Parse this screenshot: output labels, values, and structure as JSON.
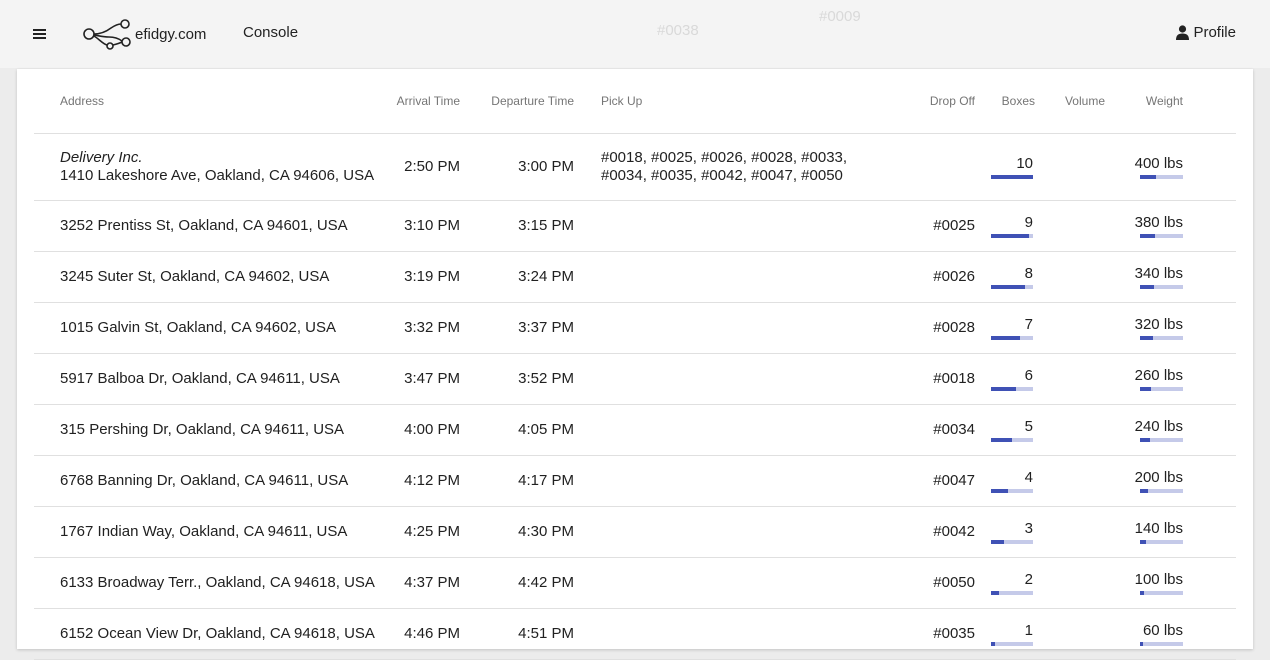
{
  "app": {
    "logo_text": "efidgy.com",
    "nav_console": "Console",
    "profile_label": "Profile",
    "background_ghost_labels": [
      "#0038",
      "#0009"
    ]
  },
  "colors": {
    "bar_fill": "#3f51b5",
    "bar_track": "#c5cae9",
    "header_bg": "#f4f4f4"
  },
  "icons": {
    "menu": "hamburger-menu-icon",
    "logo": "efidgy-route-logo-icon",
    "profile": "person-icon"
  },
  "table": {
    "headers": {
      "address": "Address",
      "arrival": "Arrival Time",
      "departure": "Departure Time",
      "pickup": "Pick Up",
      "dropoff": "Drop Off",
      "boxes": "Boxes",
      "volume": "Volume",
      "weight": "Weight"
    },
    "rows": [
      {
        "company": "Delivery Inc.",
        "address": "1410 Lakeshore Ave, Oakland, CA 94606, USA",
        "arrival": "2:50 PM",
        "departure": "3:00 PM",
        "pickup": "#0018, #0025, #0026, #0028, #0033, #0034, #0035, #0042, #0047, #0050",
        "dropoff": "",
        "boxes": "10",
        "boxes_fraction": 1.0,
        "weight": "400 lbs",
        "weight_fraction": 0.38
      },
      {
        "company": "",
        "address": "3252 Prentiss St, Oakland, CA 94601, USA",
        "arrival": "3:10 PM",
        "departure": "3:15 PM",
        "pickup": "",
        "dropoff": "#0025",
        "boxes": "9",
        "boxes_fraction": 0.9,
        "weight": "380 lbs",
        "weight_fraction": 0.36
      },
      {
        "company": "",
        "address": "3245 Suter St, Oakland, CA 94602, USA",
        "arrival": "3:19 PM",
        "departure": "3:24 PM",
        "pickup": "",
        "dropoff": "#0026",
        "boxes": "8",
        "boxes_fraction": 0.8,
        "weight": "340 lbs",
        "weight_fraction": 0.33
      },
      {
        "company": "",
        "address": "1015 Galvin St, Oakland, CA 94602, USA",
        "arrival": "3:32 PM",
        "departure": "3:37 PM",
        "pickup": "",
        "dropoff": "#0028",
        "boxes": "7",
        "boxes_fraction": 0.7,
        "weight": "320 lbs",
        "weight_fraction": 0.31
      },
      {
        "company": "",
        "address": "5917 Balboa Dr, Oakland, CA 94611, USA",
        "arrival": "3:47 PM",
        "departure": "3:52 PM",
        "pickup": "",
        "dropoff": "#0018",
        "boxes": "6",
        "boxes_fraction": 0.6,
        "weight": "260 lbs",
        "weight_fraction": 0.25
      },
      {
        "company": "",
        "address": "315 Pershing Dr, Oakland, CA 94611, USA",
        "arrival": "4:00 PM",
        "departure": "4:05 PM",
        "pickup": "",
        "dropoff": "#0034",
        "boxes": "5",
        "boxes_fraction": 0.5,
        "weight": "240 lbs",
        "weight_fraction": 0.23
      },
      {
        "company": "",
        "address": "6768 Banning Dr, Oakland, CA 94611, USA",
        "arrival": "4:12 PM",
        "departure": "4:17 PM",
        "pickup": "",
        "dropoff": "#0047",
        "boxes": "4",
        "boxes_fraction": 0.4,
        "weight": "200 lbs",
        "weight_fraction": 0.19
      },
      {
        "company": "",
        "address": "1767 Indian Way, Oakland, CA 94611, USA",
        "arrival": "4:25 PM",
        "departure": "4:30 PM",
        "pickup": "",
        "dropoff": "#0042",
        "boxes": "3",
        "boxes_fraction": 0.3,
        "weight": "140 lbs",
        "weight_fraction": 0.13
      },
      {
        "company": "",
        "address": "6133 Broadway Terr., Oakland, CA 94618, USA",
        "arrival": "4:37 PM",
        "departure": "4:42 PM",
        "pickup": "",
        "dropoff": "#0050",
        "boxes": "2",
        "boxes_fraction": 0.2,
        "weight": "100 lbs",
        "weight_fraction": 0.09
      },
      {
        "company": "",
        "address": "6152 Ocean View Dr, Oakland, CA 94618, USA",
        "arrival": "4:46 PM",
        "departure": "4:51 PM",
        "pickup": "",
        "dropoff": "#0035",
        "boxes": "1",
        "boxes_fraction": 0.1,
        "weight": "60 lbs",
        "weight_fraction": 0.06
      }
    ]
  }
}
